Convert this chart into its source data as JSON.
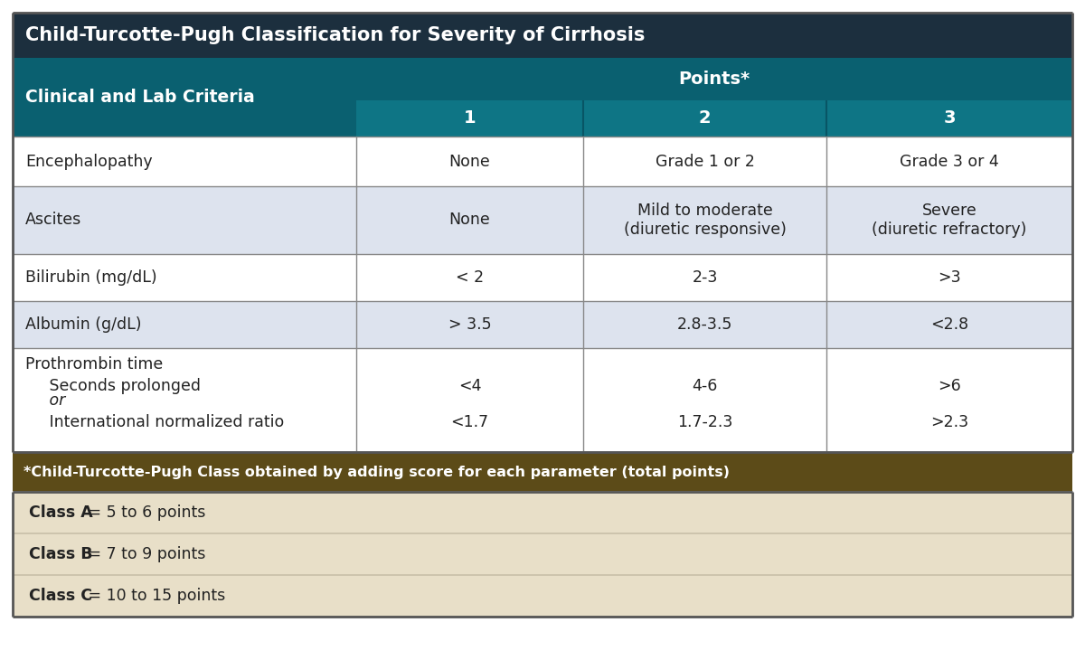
{
  "title": "Child-Turcotte-Pugh Classification for Severity of Cirrhosis",
  "title_bg": "#1c2f3e",
  "title_color": "#ffffff",
  "header_teal_dark": "#0a6070",
  "header_teal_mid": "#0e7585",
  "header_color": "#ffffff",
  "col_header_label": "Clinical and Lab Criteria",
  "points_label": "Points*",
  "point_cols": [
    "1",
    "2",
    "3"
  ],
  "row_bg_light": "#dde3ee",
  "row_bg_white": "#ffffff",
  "border_color": "#888888",
  "outer_border": "#555555",
  "footer_bg": "#5c4b18",
  "footer_color": "#ffffff",
  "class_bg": "#e8dfc8",
  "class_sep_color": "#c8bfa8",
  "text_color": "#222222",
  "rows": [
    {
      "criterion": "Encephalopathy",
      "p1": "None",
      "p2": "Grade 1 or 2",
      "p3": "Grade 3 or 4",
      "bg": "#ffffff",
      "multiline": false
    },
    {
      "criterion": "Ascites",
      "p1": "None",
      "p2": "Mild to moderate\n(diuretic responsive)",
      "p3": "Severe\n(diuretic refractory)",
      "bg": "#dde3ee",
      "multiline": false
    },
    {
      "criterion": "Bilirubin (mg/dL)",
      "p1": "< 2",
      "p2": "2-3",
      "p3": ">3",
      "bg": "#ffffff",
      "multiline": false
    },
    {
      "criterion": "Albumin (g/dL)",
      "p1": "> 3.5",
      "p2": "2.8-3.5",
      "p3": "<2.8",
      "bg": "#dde3ee",
      "multiline": false
    },
    {
      "criterion_lines": [
        "Prothrombin time",
        "   Seconds prolonged",
        "   or",
        "   International normalized ratio"
      ],
      "criterion_italic": [
        false,
        false,
        true,
        false
      ],
      "p1_lines": [
        "",
        "<4",
        "",
        "<1.7"
      ],
      "p2_lines": [
        "",
        "4-6",
        "",
        "1.7-2.3"
      ],
      "p3_lines": [
        "",
        ">6",
        "",
        ">2.3"
      ],
      "bg": "#ffffff",
      "multiline": true
    }
  ],
  "footer_note": "*Child-Turcotte-Pugh Class obtained by adding score for each parameter (total points)",
  "classes": [
    {
      "label": "Class A",
      "desc": " = 5 to 6 points"
    },
    {
      "label": "Class B",
      "desc": " = 7 to 9 points"
    },
    {
      "label": "Class C",
      "desc": " = 10 to 15 points"
    }
  ]
}
